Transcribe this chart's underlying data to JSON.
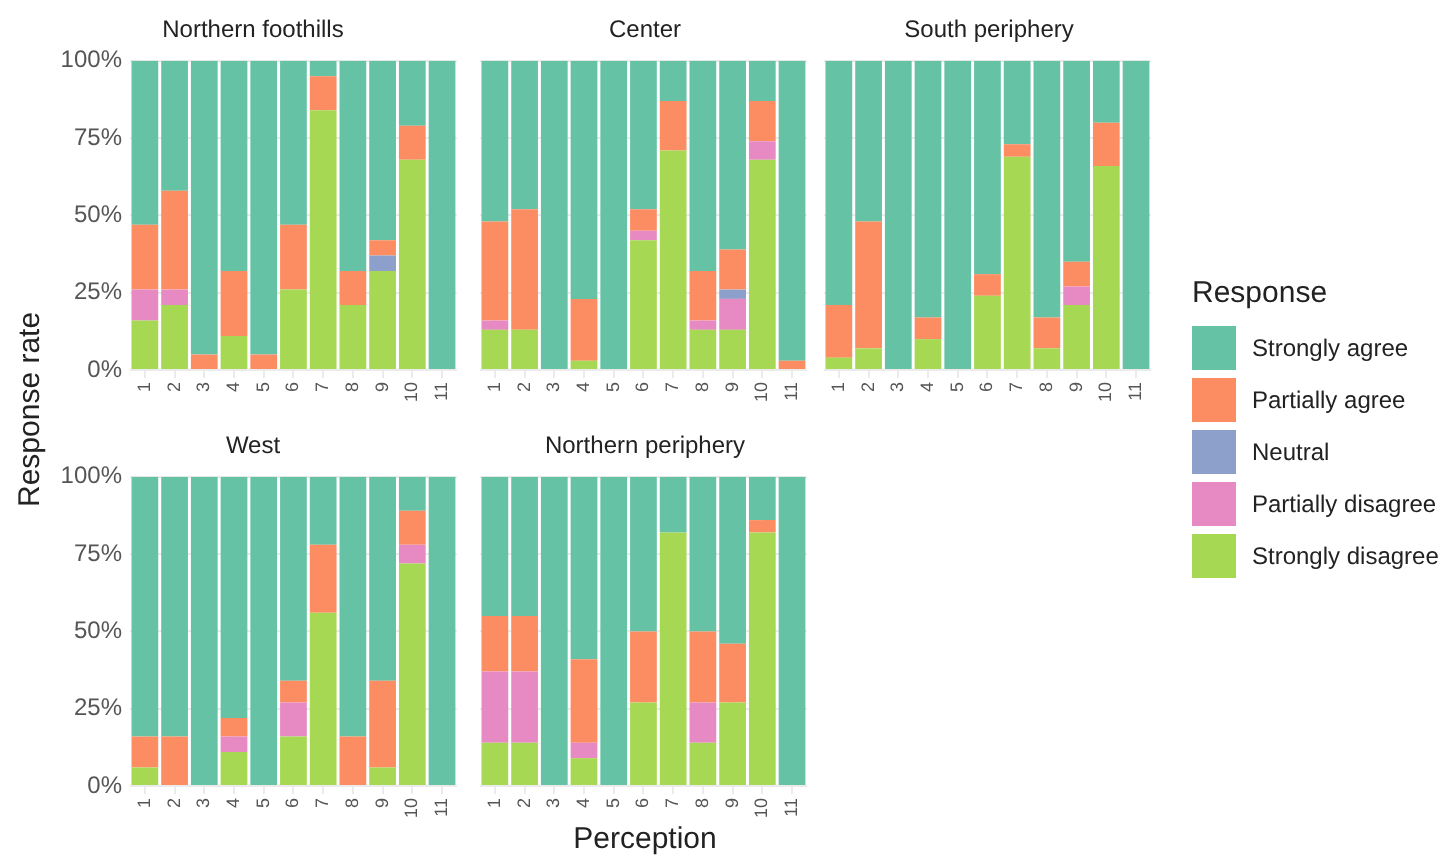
{
  "chart_data": [
    {
      "type": "bar",
      "title": "Northern foothills",
      "ylabel": "Response rate",
      "stacked": true,
      "grid": true,
      "legend": "right",
      "legend_title": "Response",
      "categories": [
        "1",
        "2",
        "3",
        "4",
        "5",
        "6",
        "7",
        "8",
        "9",
        "10",
        "11"
      ],
      "ylim": [
        0,
        100
      ],
      "yticks": [
        {
          "value": 0,
          "label": "0%"
        },
        {
          "value": 25,
          "label": "25%"
        },
        {
          "value": 50,
          "label": "50%"
        },
        {
          "value": 75,
          "label": "75%"
        },
        {
          "value": 100,
          "label": "100%"
        }
      ],
      "series": [
        {
          "name": "Strongly disagree",
          "color": "#a6d854",
          "values": [
            16,
            21,
            0,
            11,
            0,
            26,
            84,
            21,
            32,
            68,
            0
          ]
        },
        {
          "name": "Partially disagree",
          "color": "#e78ac3",
          "values": [
            10,
            5,
            0,
            0,
            0,
            0,
            0,
            0,
            0,
            0,
            0
          ]
        },
        {
          "name": "Neutral",
          "color": "#8da0cb",
          "values": [
            0,
            0,
            0,
            0,
            0,
            0,
            0,
            0,
            5,
            0,
            0
          ]
        },
        {
          "name": "Partially agree",
          "color": "#fc8d62",
          "values": [
            21,
            32,
            5,
            21,
            5,
            21,
            11,
            11,
            5,
            11,
            0
          ]
        },
        {
          "name": "Strongly agree",
          "color": "#66c2a5",
          "values": [
            53,
            42,
            95,
            68,
            95,
            53,
            5,
            68,
            58,
            21,
            100
          ]
        }
      ]
    },
    {
      "type": "bar",
      "title": "Center",
      "stacked": true,
      "grid": true,
      "tick_labels": "x",
      "categories": [
        "1",
        "2",
        "3",
        "4",
        "5",
        "6",
        "7",
        "8",
        "9",
        "10",
        "11"
      ],
      "ylim": [
        0,
        100
      ],
      "yticks": [
        {
          "value": 0,
          "label": null
        },
        {
          "value": 25,
          "label": null
        },
        {
          "value": 50,
          "label": null
        },
        {
          "value": 75,
          "label": null
        },
        {
          "value": 100,
          "label": null
        }
      ],
      "series": [
        {
          "color": "#a6d854",
          "values": [
            13,
            13,
            0,
            3,
            0,
            42,
            71,
            13,
            13,
            68,
            0
          ]
        },
        {
          "color": "#e78ac3",
          "values": [
            3,
            0,
            0,
            0,
            0,
            3,
            0,
            3,
            10,
            6,
            0
          ]
        },
        {
          "color": "#8da0cb",
          "values": [
            0,
            0,
            0,
            0,
            0,
            0,
            0,
            0,
            3,
            0,
            0
          ]
        },
        {
          "color": "#fc8d62",
          "values": [
            32,
            39,
            0,
            20,
            0,
            7,
            16,
            16,
            13,
            13,
            3
          ]
        },
        {
          "color": "#66c2a5",
          "values": [
            52,
            48,
            100,
            77,
            100,
            48,
            13,
            68,
            61,
            13,
            97
          ]
        }
      ]
    },
    {
      "type": "bar",
      "title": "South periphery",
      "stacked": true,
      "grid": true,
      "tick_labels": "x",
      "categories": [
        "1",
        "2",
        "3",
        "4",
        "5",
        "6",
        "7",
        "8",
        "9",
        "10",
        "11"
      ],
      "ylim": [
        0,
        100
      ],
      "yticks": [
        {
          "value": 0,
          "label": null
        },
        {
          "value": 25,
          "label": null
        },
        {
          "value": 50,
          "label": null
        },
        {
          "value": 75,
          "label": null
        },
        {
          "value": 100,
          "label": null
        }
      ],
      "series": [
        {
          "color": "#a6d854",
          "values": [
            4,
            7,
            0,
            10,
            0,
            24,
            69,
            7,
            21,
            66,
            0
          ]
        },
        {
          "color": "#e78ac3",
          "values": [
            0,
            0,
            0,
            0,
            0,
            0,
            0,
            0,
            6,
            0,
            0
          ]
        },
        {
          "color": "#8da0cb",
          "values": [
            0,
            0,
            0,
            0,
            0,
            0,
            0,
            0,
            0,
            0,
            0
          ]
        },
        {
          "color": "#fc8d62",
          "values": [
            17,
            41,
            0,
            7,
            0,
            7,
            4,
            10,
            8,
            14,
            0
          ]
        },
        {
          "color": "#66c2a5",
          "values": [
            79,
            52,
            100,
            83,
            100,
            69,
            27,
            83,
            65,
            20,
            100
          ]
        }
      ]
    },
    {
      "type": "bar",
      "title": "West",
      "stacked": true,
      "grid": true,
      "categories": [
        "1",
        "2",
        "3",
        "4",
        "5",
        "6",
        "7",
        "8",
        "9",
        "10",
        "11"
      ],
      "ylim": [
        0,
        100
      ],
      "yticks": [
        {
          "value": 0,
          "label": "0%"
        },
        {
          "value": 25,
          "label": "25%"
        },
        {
          "value": 50,
          "label": "50%"
        },
        {
          "value": 75,
          "label": "75%"
        },
        {
          "value": 100,
          "label": "100%"
        }
      ],
      "series": [
        {
          "color": "#a6d854",
          "values": [
            6,
            0,
            0,
            11,
            0,
            16,
            56,
            0,
            6,
            72,
            0
          ]
        },
        {
          "color": "#e78ac3",
          "values": [
            0,
            0,
            0,
            5,
            0,
            11,
            0,
            0,
            0,
            6,
            0
          ]
        },
        {
          "color": "#8da0cb",
          "values": [
            0,
            0,
            0,
            0,
            0,
            0,
            0,
            0,
            0,
            0,
            0
          ]
        },
        {
          "color": "#fc8d62",
          "values": [
            10,
            16,
            0,
            6,
            0,
            7,
            22,
            16,
            28,
            11,
            0
          ]
        },
        {
          "color": "#66c2a5",
          "values": [
            84,
            84,
            100,
            78,
            100,
            66,
            22,
            84,
            66,
            11,
            100
          ]
        }
      ]
    },
    {
      "type": "bar",
      "title": "Northern periphery",
      "xlabel": "Perception",
      "stacked": true,
      "grid": true,
      "tick_labels": "x",
      "categories": [
        "1",
        "2",
        "3",
        "4",
        "5",
        "6",
        "7",
        "8",
        "9",
        "10",
        "11"
      ],
      "ylim": [
        0,
        100
      ],
      "yticks": [
        {
          "value": 0,
          "label": null
        },
        {
          "value": 25,
          "label": null
        },
        {
          "value": 50,
          "label": null
        },
        {
          "value": 75,
          "label": null
        },
        {
          "value": 100,
          "label": null
        }
      ],
      "series": [
        {
          "color": "#a6d854",
          "values": [
            14,
            14,
            0,
            9,
            0,
            27,
            82,
            14,
            27,
            82,
            0
          ]
        },
        {
          "color": "#e78ac3",
          "values": [
            23,
            23,
            0,
            5,
            0,
            0,
            0,
            13,
            0,
            0,
            0
          ]
        },
        {
          "color": "#8da0cb",
          "values": [
            0,
            0,
            0,
            0,
            0,
            0,
            0,
            0,
            0,
            0,
            0
          ]
        },
        {
          "color": "#fc8d62",
          "values": [
            18,
            18,
            0,
            27,
            0,
            23,
            0,
            23,
            19,
            4,
            0
          ]
        },
        {
          "color": "#66c2a5",
          "values": [
            45,
            45,
            100,
            59,
            100,
            50,
            18,
            50,
            54,
            14,
            100
          ]
        }
      ]
    }
  ]
}
